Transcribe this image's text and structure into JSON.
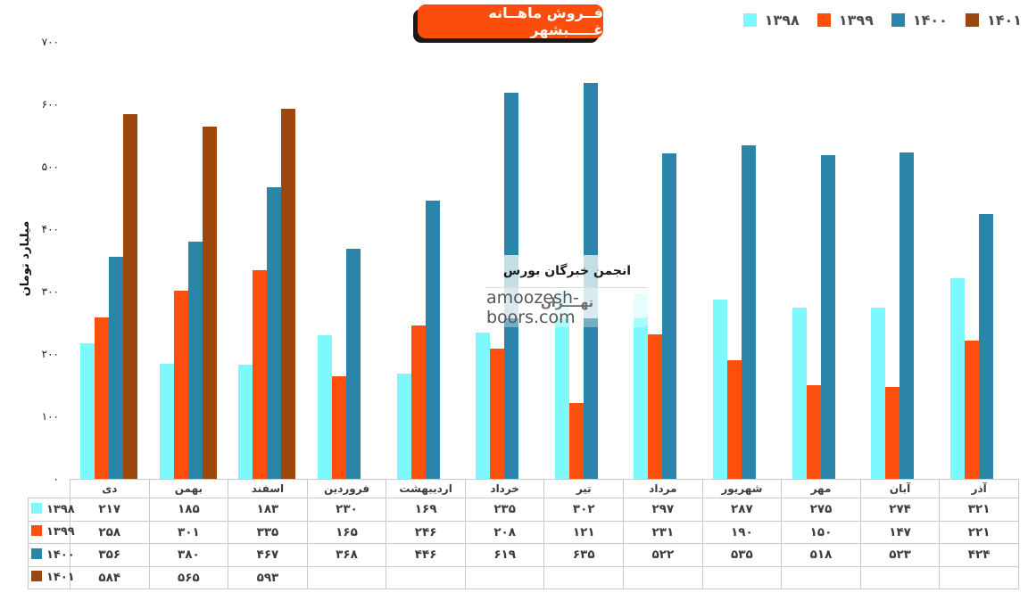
{
  "header": {
    "title": "فــروش ماهــانه غـــــبشهر",
    "title_bg": "#FB4E0D",
    "title_shadow": "#1A1A1A"
  },
  "legend": {
    "items": [
      {
        "label": "۱۳۹۸",
        "color": "#7DF9FD"
      },
      {
        "label": "۱۳۹۹",
        "color": "#FC4F0E"
      },
      {
        "label": "۱۴۰۰",
        "color": "#2B85A8"
      },
      {
        "label": "۱۴۰۱",
        "color": "#9C470D"
      }
    ]
  },
  "watermark": {
    "line1": "انجمن خبرگان بورس تهــــران",
    "line2": "amoozesh-boors.com"
  },
  "y_axis": {
    "label": "میلیارد تومان",
    "ticks": [
      {
        "value": 700,
        "label": "۷۰۰"
      },
      {
        "value": 600,
        "label": "۶۰۰"
      },
      {
        "value": 500,
        "label": "۵۰۰"
      },
      {
        "value": 400,
        "label": "۴۰۰"
      },
      {
        "value": 300,
        "label": "۳۰۰"
      },
      {
        "value": 200,
        "label": "۲۰۰"
      },
      {
        "value": 100,
        "label": "۱۰۰"
      },
      {
        "value": 0,
        "label": "۰"
      }
    ]
  },
  "chart_data": {
    "type": "bar",
    "title": "فروش ماهانه غبشهر",
    "ylabel": "میلیارد تومان",
    "ylim": [
      0,
      700
    ],
    "grid": false,
    "legend_position": "top-right",
    "categories": [
      "دی",
      "بهمن",
      "اسفند",
      "فروردین",
      "اردیبهشت",
      "خرداد",
      "تیر",
      "مرداد",
      "شهریور",
      "مهر",
      "آبان",
      "آذر"
    ],
    "series": [
      {
        "name": "۱۳۹۸",
        "color": "#7DF9FD",
        "values": [
          217,
          185,
          183,
          230,
          169,
          235,
          302,
          297,
          287,
          275,
          274,
          321
        ]
      },
      {
        "name": "۱۳۹۹",
        "color": "#FC4F0E",
        "values": [
          258,
          301,
          335,
          165,
          246,
          208,
          121,
          231,
          190,
          150,
          147,
          221
        ]
      },
      {
        "name": "۱۴۰۰",
        "color": "#2B85A8",
        "values": [
          356,
          380,
          467,
          368,
          446,
          619,
          635,
          522,
          535,
          518,
          523,
          424
        ]
      },
      {
        "name": "۱۴۰۱",
        "color": "#9C470D",
        "values": [
          584,
          565,
          593,
          null,
          null,
          null,
          null,
          null,
          null,
          null,
          null,
          null
        ]
      }
    ]
  },
  "table": {
    "columns": [
      "دی",
      "بهمن",
      "اسفند",
      "فروردین",
      "اردیبهشت",
      "خرداد",
      "تیر",
      "مرداد",
      "شهریور",
      "مهر",
      "آبان",
      "آذر"
    ],
    "rows": [
      {
        "label": "۱۳۹۸",
        "color": "#7DF9FD",
        "cells": [
          "۲۱۷",
          "۱۸۵",
          "۱۸۳",
          "۲۳۰",
          "۱۶۹",
          "۲۳۵",
          "۳۰۲",
          "۲۹۷",
          "۲۸۷",
          "۲۷۵",
          "۲۷۴",
          "۳۲۱"
        ]
      },
      {
        "label": "۱۳۹۹",
        "color": "#FC4F0E",
        "cells": [
          "۲۵۸",
          "۳۰۱",
          "۳۳۵",
          "۱۶۵",
          "۲۴۶",
          "۲۰۸",
          "۱۲۱",
          "۲۳۱",
          "۱۹۰",
          "۱۵۰",
          "۱۴۷",
          "۲۲۱"
        ]
      },
      {
        "label": "۱۴۰۰",
        "color": "#2B85A8",
        "cells": [
          "۳۵۶",
          "۳۸۰",
          "۴۶۷",
          "۳۶۸",
          "۴۴۶",
          "۶۱۹",
          "۶۳۵",
          "۵۲۲",
          "۵۳۵",
          "۵۱۸",
          "۵۲۳",
          "۴۲۴"
        ]
      },
      {
        "label": "۱۴۰۱",
        "color": "#9C470D",
        "cells": [
          "۵۸۴",
          "۵۶۵",
          "۵۹۳",
          "",
          "",
          "",
          "",
          "",
          "",
          "",
          "",
          ""
        ]
      }
    ]
  }
}
